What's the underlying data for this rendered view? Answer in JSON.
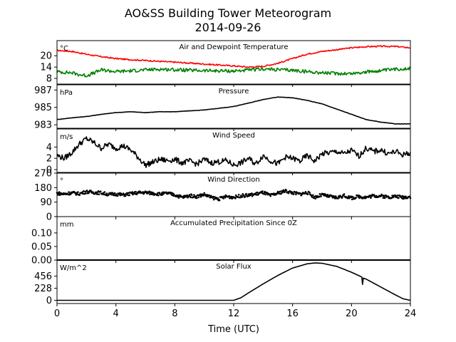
{
  "figure": {
    "title": "AO&SS Building Tower Meteorogram",
    "subtitle": "2014-09-26",
    "xlabel": "Time (UTC)"
  },
  "chart_data": [
    {
      "type": "line",
      "title": "Air and Dewpoint Temperature",
      "unit": "°C",
      "xlim": [
        0,
        24
      ],
      "ylim": [
        5,
        28
      ],
      "yticks": [
        "8",
        "14",
        "20"
      ],
      "ytick_values": [
        8,
        14,
        20
      ],
      "series": [
        {
          "color": "#ff0000",
          "x": [
            0,
            1,
            2,
            3,
            4,
            5,
            6,
            7,
            8,
            9,
            10,
            11,
            12,
            13,
            14,
            15,
            16,
            17,
            18,
            19,
            20,
            21,
            22,
            23,
            24
          ],
          "y": [
            22.8,
            22.3,
            20.8,
            19.5,
            18.5,
            17.9,
            17.5,
            17.0,
            16.6,
            16.1,
            15.6,
            15.1,
            14.6,
            14.0,
            14.4,
            16.0,
            18.5,
            20.9,
            22.3,
            23.2,
            24.2,
            24.8,
            25.0,
            24.9,
            24.2
          ]
        },
        {
          "color": "#008000",
          "x": [
            0,
            1,
            1.5,
            2,
            2.5,
            3,
            4,
            5,
            6,
            7,
            8,
            9,
            10,
            11,
            12,
            13,
            14,
            15,
            16,
            17,
            18,
            19,
            20,
            21,
            22,
            23,
            24
          ],
          "y": [
            11.5,
            11.0,
            10.0,
            9.5,
            10.8,
            12.5,
            11.6,
            12.0,
            12.5,
            12.9,
            12.6,
            12.3,
            12.1,
            12.0,
            11.9,
            12.4,
            13.0,
            12.6,
            12.3,
            11.6,
            11.0,
            10.6,
            10.6,
            11.4,
            12.1,
            12.8,
            13.4
          ]
        }
      ]
    },
    {
      "type": "line",
      "title": "Pressure",
      "unit": "hPa",
      "xlim": [
        0,
        24
      ],
      "ylim": [
        982.6,
        987.6
      ],
      "yticks": [
        "983",
        "985",
        "987"
      ],
      "ytick_values": [
        983,
        985,
        987
      ],
      "series": [
        {
          "color": "#000000",
          "x": [
            0,
            1,
            2,
            3,
            4,
            5,
            6,
            7,
            8,
            9,
            10,
            11,
            12,
            13,
            14,
            15,
            16,
            17,
            18,
            19,
            20,
            21,
            22,
            23,
            24
          ],
          "y": [
            983.6,
            983.8,
            983.95,
            984.2,
            984.4,
            984.5,
            984.4,
            984.5,
            984.5,
            984.6,
            984.7,
            984.9,
            985.1,
            985.5,
            985.9,
            986.2,
            986.1,
            985.8,
            985.4,
            984.8,
            984.2,
            983.6,
            983.3,
            983.1,
            983.1
          ]
        }
      ]
    },
    {
      "type": "line",
      "title": "Wind Speed",
      "unit": "m/s",
      "xlim": [
        0,
        24
      ],
      "ylim": [
        -0.5,
        7.2
      ],
      "yticks": [
        "0",
        "2",
        "4"
      ],
      "ytick_values": [
        0,
        2,
        4
      ],
      "series": [
        {
          "color": "#000000",
          "x": [
            0,
            0.5,
            1,
            1.5,
            2,
            2.5,
            3,
            3.5,
            4,
            4.5,
            5,
            5.5,
            6,
            6.5,
            7,
            7.5,
            8,
            8.5,
            9,
            9.5,
            10,
            10.5,
            11,
            11.5,
            12,
            12.5,
            13,
            13.5,
            14,
            14.5,
            15,
            15.5,
            16,
            16.5,
            17,
            17.5,
            18,
            18.5,
            19,
            19.5,
            20,
            20.5,
            21,
            21.5,
            22,
            22.5,
            23,
            23.5,
            24
          ],
          "y": [
            2.5,
            2.0,
            3.0,
            4.5,
            5.5,
            4.8,
            3.8,
            4.5,
            3.8,
            4.2,
            3.5,
            2.2,
            0.8,
            1.3,
            1.8,
            1.6,
            1.8,
            1.2,
            1.5,
            1.0,
            1.8,
            1.2,
            1.4,
            1.6,
            0.8,
            1.2,
            2.0,
            1.0,
            2.5,
            1.6,
            1.0,
            2.2,
            2.0,
            1.5,
            2.5,
            1.5,
            2.8,
            3.0,
            3.2,
            2.8,
            3.4,
            2.4,
            3.8,
            3.2,
            3.5,
            2.8,
            3.2,
            2.6,
            3.0
          ]
        }
      ]
    },
    {
      "type": "scatter",
      "title": "Wind Direction",
      "unit": "°",
      "xlim": [
        0,
        24
      ],
      "ylim": [
        0,
        270
      ],
      "yticks": [
        "0",
        "90",
        "180",
        "270"
      ],
      "ytick_values": [
        0,
        90,
        180,
        270
      ],
      "series": [
        {
          "color": "#000000",
          "x": [
            0,
            0.5,
            1,
            1.5,
            2,
            2.5,
            3,
            3.5,
            4,
            4.5,
            5,
            5.5,
            6,
            6.5,
            7,
            7.5,
            8,
            8.5,
            9,
            9.5,
            10,
            10.5,
            11,
            11.5,
            12,
            12.5,
            13,
            13.5,
            14,
            14.5,
            15,
            15.5,
            16,
            16.5,
            17,
            17.5,
            18,
            18.5,
            19,
            19.5,
            20,
            20.5,
            21,
            21.5,
            22,
            22.5,
            23,
            23.5,
            24
          ],
          "y": [
            145,
            140,
            148,
            142,
            155,
            150,
            148,
            138,
            140,
            135,
            142,
            148,
            150,
            145,
            140,
            145,
            135,
            120,
            130,
            125,
            138,
            118,
            110,
            125,
            120,
            130,
            132,
            140,
            150,
            130,
            145,
            160,
            148,
            140,
            150,
            120,
            135,
            125,
            118,
            130,
            115,
            125,
            120,
            130,
            128,
            122,
            126,
            120,
            125
          ]
        }
      ]
    },
    {
      "type": "line",
      "title": "Accumulated Precipitation Since 0Z",
      "unit": "mm",
      "xlim": [
        0,
        24
      ],
      "ylim": [
        0,
        0.16
      ],
      "yticks": [
        "0.00",
        "0.05",
        "0.10"
      ],
      "ytick_values": [
        0,
        0.05,
        0.1
      ],
      "series": [
        {
          "color": "#000000",
          "x": [
            0,
            24
          ],
          "y": [
            0,
            0
          ]
        }
      ]
    },
    {
      "type": "line",
      "title": "Solar Flux",
      "unit": "W/m^2",
      "xlim": [
        0,
        24
      ],
      "ylim": [
        -60,
        760
      ],
      "yticks": [
        "0",
        "228",
        "456"
      ],
      "ytick_values": [
        0,
        228,
        456
      ],
      "series": [
        {
          "color": "#000000",
          "x": [
            0,
            6,
            12,
            12.5,
            13,
            14,
            15,
            16,
            17,
            17.5,
            18,
            19,
            20,
            20.7,
            20.75,
            20.8,
            21,
            22,
            23,
            23.5,
            24
          ],
          "y": [
            0,
            0,
            0,
            50,
            140,
            310,
            470,
            610,
            690,
            705,
            700,
            640,
            530,
            440,
            300,
            420,
            400,
            250,
            100,
            30,
            0
          ]
        }
      ]
    }
  ],
  "x_axis": {
    "ticks": [
      "0",
      "4",
      "8",
      "12",
      "16",
      "20",
      "24"
    ],
    "tick_values": [
      0,
      4,
      8,
      12,
      16,
      20,
      24
    ]
  }
}
